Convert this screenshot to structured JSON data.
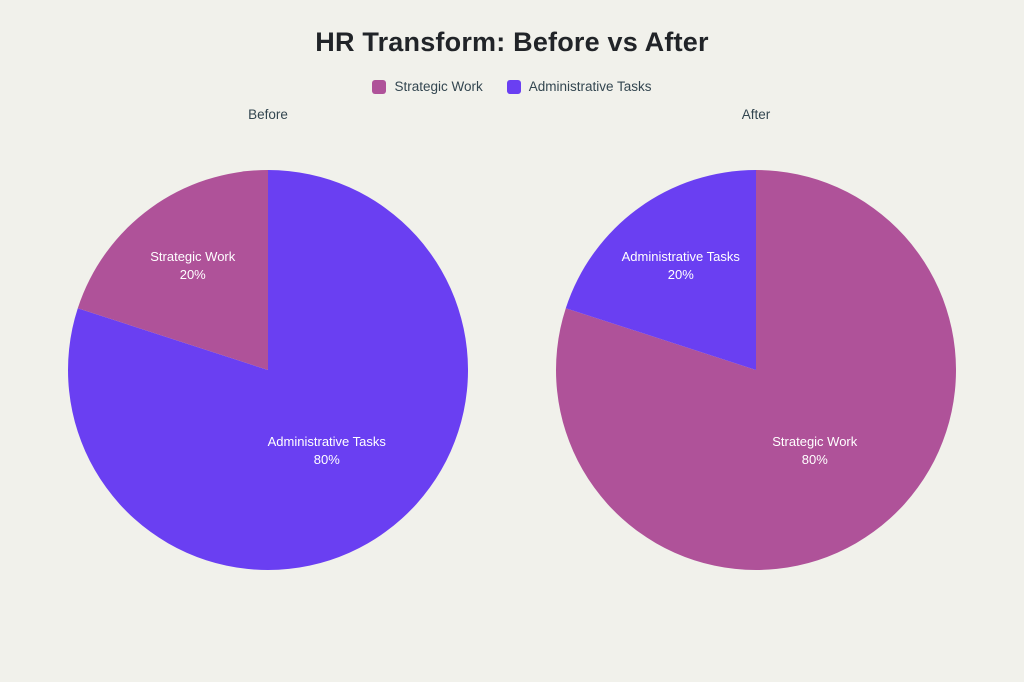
{
  "page": {
    "background_color": "#F1F1EB",
    "title_color": "#212428",
    "label_color": "#334650",
    "slice_label_color": "#FFFFFF"
  },
  "title": {
    "text": "HR Transform: Before vs After"
  },
  "legend": {
    "items": [
      {
        "label": "Strategic Work",
        "color": "#AF5299"
      },
      {
        "label": "Administrative Tasks",
        "color": "#6A3FF2"
      }
    ]
  },
  "chart_data": [
    {
      "type": "pie",
      "title": "Before",
      "start_angle_deg": 0,
      "direction": "clockwise",
      "value_suffix": "%",
      "slices": [
        {
          "label": "Administrative Tasks",
          "value": 80,
          "color": "#6A3FF2",
          "label_r": 0.5
        },
        {
          "label": "Strategic Work",
          "value": 20,
          "color": "#AF5299",
          "label_r": 0.64
        }
      ]
    },
    {
      "type": "pie",
      "title": "After",
      "start_angle_deg": 0,
      "direction": "clockwise",
      "value_suffix": "%",
      "slices": [
        {
          "label": "Strategic Work",
          "value": 80,
          "color": "#AF5299",
          "label_r": 0.5
        },
        {
          "label": "Administrative Tasks",
          "value": 20,
          "color": "#6A3FF2",
          "label_r": 0.64
        }
      ]
    }
  ]
}
